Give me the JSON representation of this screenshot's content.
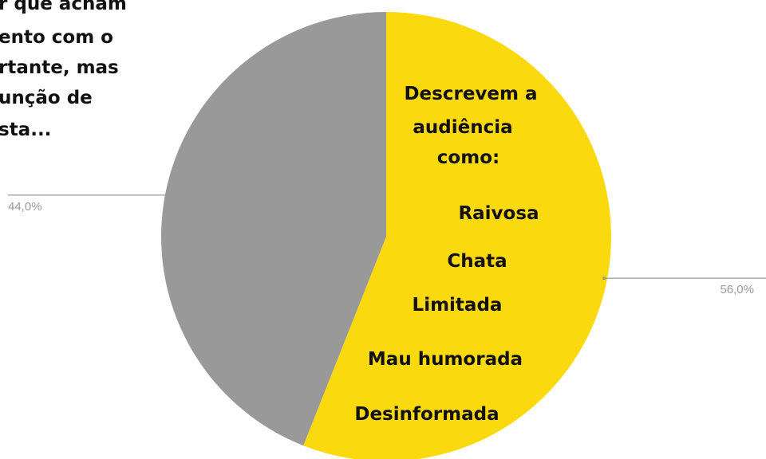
{
  "chart_data": {
    "type": "pie",
    "series": [
      {
        "values": [
          56,
          44
        ],
        "value_labels": [
          "56,0%",
          "44,0%"
        ],
        "colors": [
          "#fbd90f",
          "#999999"
        ]
      }
    ],
    "annotations": [
      "Descrevem a",
      "audiência",
      "como:",
      "Raivosa",
      "Chata",
      "Limitada",
      "Mau humorada",
      "Desinformada"
    ],
    "side_text": [
      "r que acham",
      "ento com o",
      "rtante, mas",
      "unção de",
      "sta..."
    ]
  }
}
